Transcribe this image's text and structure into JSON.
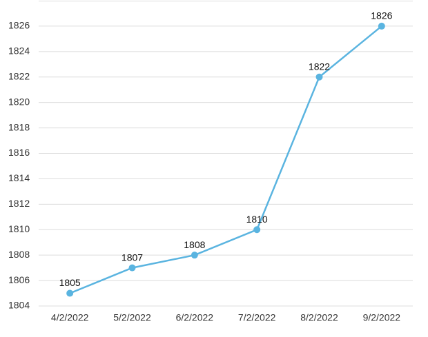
{
  "chart_data": {
    "type": "line",
    "categories": [
      "4/2/2022",
      "5/2/2022",
      "6/2/2022",
      "7/2/2022",
      "8/2/2022",
      "9/2/2022"
    ],
    "series": [
      {
        "color": "#5ab4e0",
        "values": [
          1805,
          1807,
          1808,
          1810,
          1822,
          1826
        ]
      }
    ],
    "ylim": [
      1804,
      1828
    ],
    "yticks": [
      1804,
      1806,
      1808,
      1810,
      1812,
      1814,
      1816,
      1818,
      1820,
      1822,
      1824,
      1826
    ],
    "grid": true
  }
}
